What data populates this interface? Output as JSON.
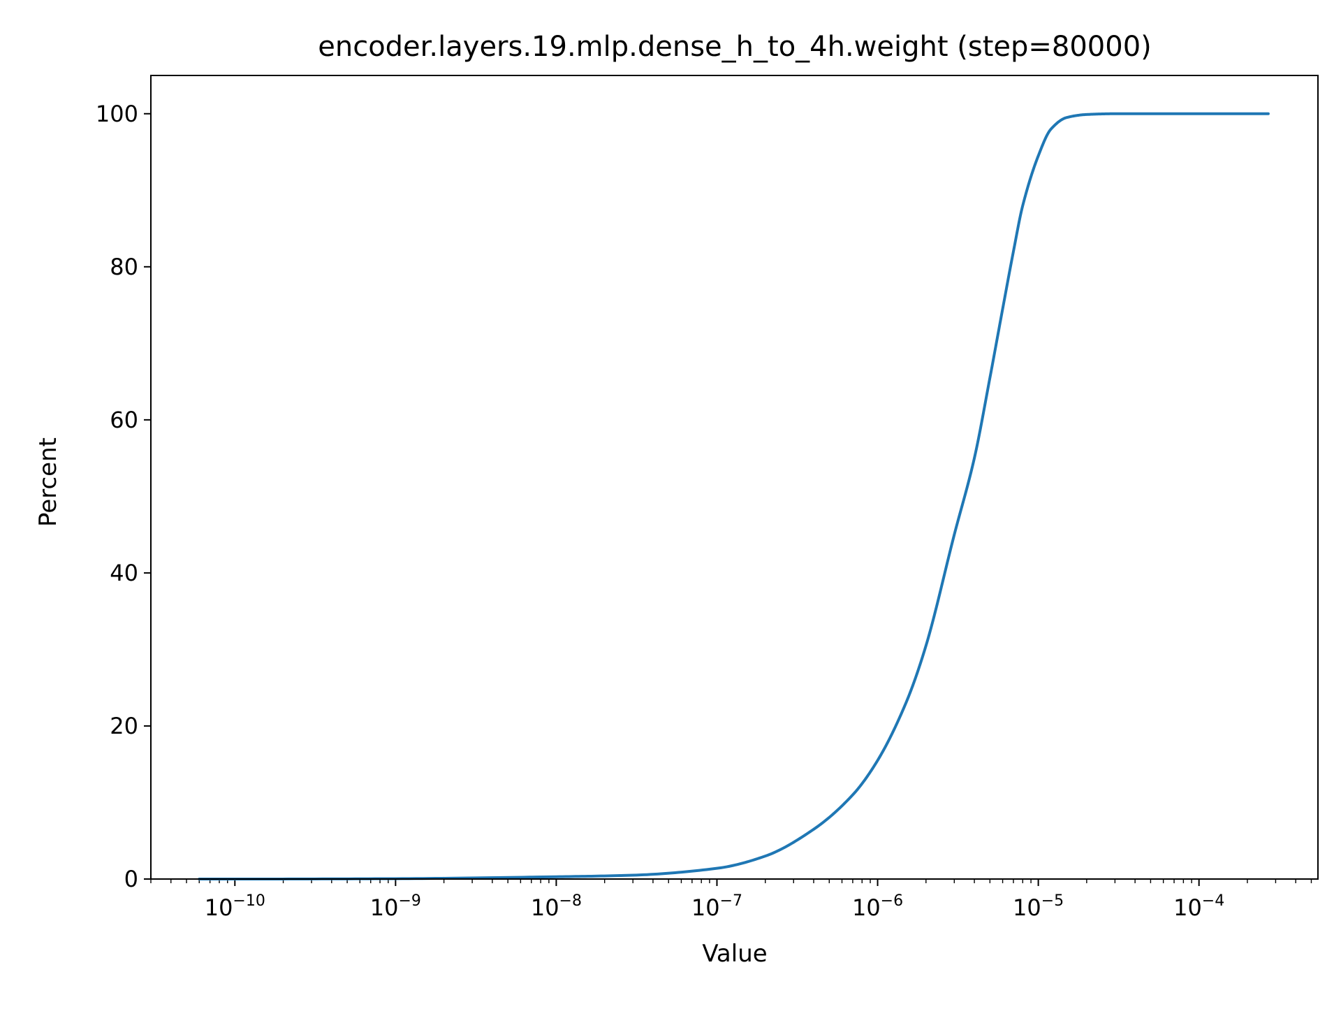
{
  "chart_data": {
    "type": "line",
    "title": "encoder.layers.19.mlp.dense_h_to_4h.weight (step=80000)",
    "xlabel": "Value",
    "ylabel": "Percent",
    "x_scale": "log",
    "xlim": [
      3e-11,
      0.00055
    ],
    "ylim": [
      0,
      105
    ],
    "grid": false,
    "line_color": "#1f77b4",
    "x_major_ticks": [
      {
        "value": 1e-10,
        "base": "10",
        "exp": "−10"
      },
      {
        "value": 1e-09,
        "base": "10",
        "exp": "−9"
      },
      {
        "value": 1e-08,
        "base": "10",
        "exp": "−8"
      },
      {
        "value": 1e-07,
        "base": "10",
        "exp": "−7"
      },
      {
        "value": 1e-06,
        "base": "10",
        "exp": "−6"
      },
      {
        "value": 1e-05,
        "base": "10",
        "exp": "−5"
      },
      {
        "value": 0.0001,
        "base": "10",
        "exp": "−4"
      }
    ],
    "y_ticks": [
      {
        "value": 0,
        "label": "0"
      },
      {
        "value": 20,
        "label": "20"
      },
      {
        "value": 40,
        "label": "40"
      },
      {
        "value": 60,
        "label": "60"
      },
      {
        "value": 80,
        "label": "80"
      },
      {
        "value": 100,
        "label": "100"
      }
    ],
    "series": [
      {
        "x": [
          6e-11,
          1e-10,
          1e-09,
          1e-08,
          3e-08,
          1e-07,
          2e-07,
          4e-07,
          7e-07,
          1e-06,
          1.5e-06,
          2e-06,
          3e-06,
          4e-06,
          5e-06,
          6e-06,
          7e-06,
          8e-06,
          1e-05,
          1.2e-05,
          1.5e-05,
          2e-05,
          3e-05,
          0.0001,
          0.00027
        ],
        "y": [
          0,
          0,
          0.05,
          0.3,
          0.5,
          1.4,
          3.0,
          6.5,
          11.0,
          15.5,
          23.0,
          30.5,
          45.0,
          55.0,
          65.5,
          74.5,
          82.0,
          88.0,
          94.5,
          98.0,
          99.5,
          99.9,
          100.0,
          100.0,
          100.0
        ]
      }
    ]
  }
}
